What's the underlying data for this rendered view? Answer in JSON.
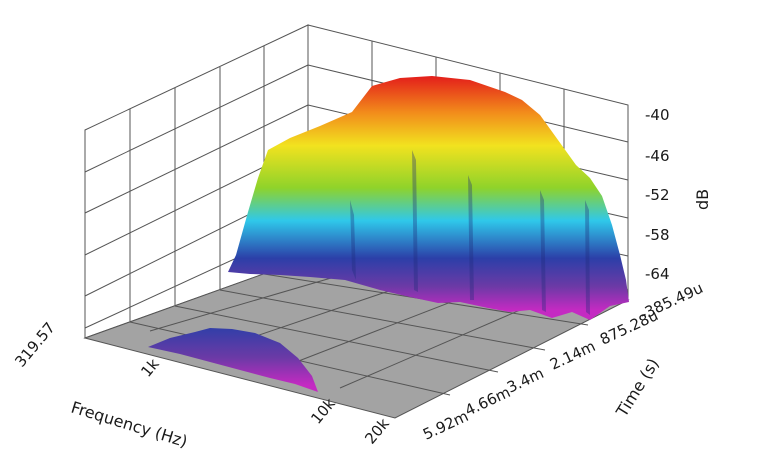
{
  "chart_data": {
    "type": "surface-3d",
    "x_axis": {
      "title": "Frequency (Hz)",
      "tick_labels": [
        "319.57",
        "1k",
        "10k",
        "20k"
      ]
    },
    "y_axis": {
      "title": "Time (s)",
      "tick_labels": [
        "-385.49u",
        "875.28u",
        "2.14m",
        "3.4m",
        "4.66m",
        "5.92m"
      ]
    },
    "z_axis": {
      "title": "dB",
      "tick_labels": [
        "-40",
        "-46",
        "-52",
        "-58",
        "-64"
      ],
      "range": [
        -70,
        -37
      ]
    },
    "colors": {
      "background": "#ffffff",
      "floor": "#a3a3a3",
      "grid": "#555555",
      "colormap": [
        "#c026c0",
        "#2c3fa8",
        "#2fc8ea",
        "#8fd32a",
        "#f2e21f",
        "#f28c1b",
        "#e31b1b"
      ]
    },
    "surface": {
      "main_lobe_peak_db": -38,
      "main_lobe_span": [
        "1k",
        "20k"
      ],
      "secondary_lobe_peak_db": -64,
      "secondary_lobe_span": [
        "319.57",
        "10k"
      ]
    }
  }
}
